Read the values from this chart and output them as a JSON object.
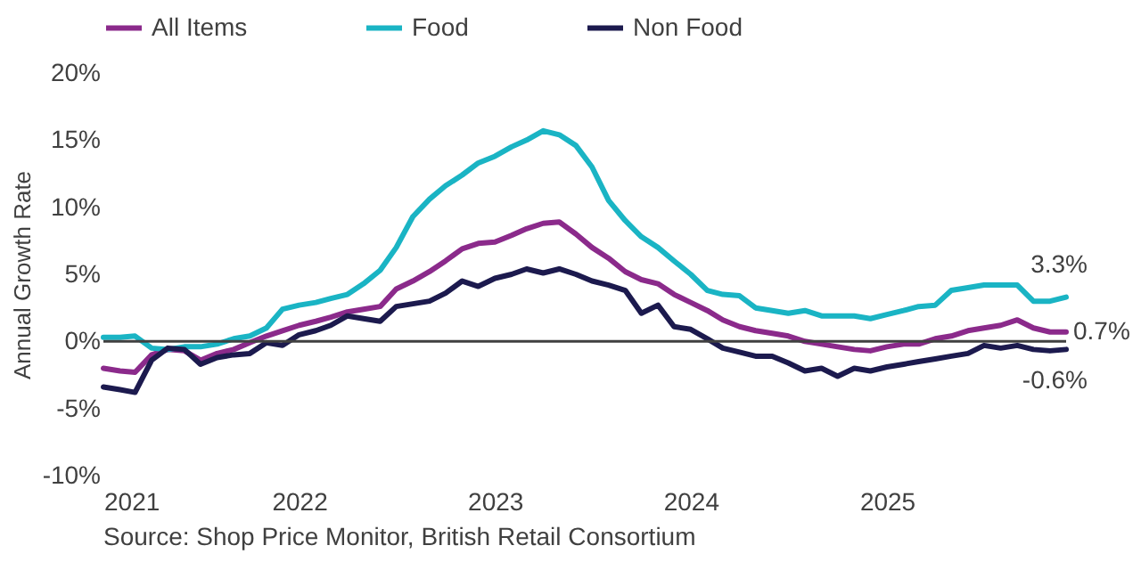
{
  "chart_data": {
    "type": "line",
    "ylabel": "Annual Growth Rate",
    "x": [
      "2021-01",
      "2021-02",
      "2021-03",
      "2021-04",
      "2021-05",
      "2021-06",
      "2021-07",
      "2021-08",
      "2021-09",
      "2021-10",
      "2021-11",
      "2021-12",
      "2022-01",
      "2022-02",
      "2022-03",
      "2022-04",
      "2022-05",
      "2022-06",
      "2022-07",
      "2022-08",
      "2022-09",
      "2022-10",
      "2022-11",
      "2022-12",
      "2023-01",
      "2023-02",
      "2023-03",
      "2023-04",
      "2023-05",
      "2023-06",
      "2023-07",
      "2023-08",
      "2023-09",
      "2023-10",
      "2023-11",
      "2023-12",
      "2024-01",
      "2024-02",
      "2024-03",
      "2024-04",
      "2024-05",
      "2024-06",
      "2024-07",
      "2024-08",
      "2024-09",
      "2024-10",
      "2024-11",
      "2024-12",
      "2025-01",
      "2025-02",
      "2025-03",
      "2025-04",
      "2025-05",
      "2025-06",
      "2025-07",
      "2025-08",
      "2025-09",
      "2025-10",
      "2025-11",
      "2025-12"
    ],
    "series": [
      {
        "name": "All Items",
        "color": "#8b2a8b",
        "values": [
          -2.0,
          -2.2,
          -2.3,
          -1.0,
          -0.6,
          -0.7,
          -1.4,
          -0.9,
          -0.6,
          -0.1,
          0.4,
          0.8,
          1.2,
          1.5,
          1.8,
          2.2,
          2.4,
          2.6,
          3.9,
          4.5,
          5.2,
          6.0,
          6.9,
          7.3,
          7.4,
          7.9,
          8.4,
          8.8,
          8.9,
          8.0,
          7.0,
          6.2,
          5.2,
          4.6,
          4.3,
          3.5,
          2.9,
          2.3,
          1.6,
          1.1,
          0.8,
          0.6,
          0.4,
          0.0,
          -0.2,
          -0.4,
          -0.6,
          -0.7,
          -0.4,
          -0.2,
          -0.2,
          0.2,
          0.4,
          0.8,
          1.0,
          1.2,
          1.6,
          1.0,
          0.7,
          0.7
        ],
        "value_labels": [
          null,
          null,
          null,
          null,
          null,
          null,
          null,
          null,
          null,
          null,
          null,
          null,
          null,
          null,
          null,
          null,
          null,
          null,
          null,
          null,
          null,
          null,
          null,
          null,
          null,
          null,
          null,
          null,
          null,
          null,
          null,
          null,
          null,
          null,
          null,
          null,
          null,
          null,
          null,
          null,
          null,
          null,
          null,
          null,
          null,
          null,
          null,
          null,
          null,
          null,
          null,
          null,
          null,
          null,
          null,
          null,
          null,
          null,
          null,
          "0.7%"
        ]
      },
      {
        "name": "Food",
        "color": "#1ab4c4",
        "values": [
          0.3,
          0.3,
          0.4,
          -0.5,
          -0.6,
          -0.4,
          -0.4,
          -0.2,
          0.2,
          0.4,
          1.0,
          2.4,
          2.7,
          2.9,
          3.2,
          3.5,
          4.3,
          5.3,
          7.0,
          9.3,
          10.6,
          11.6,
          12.4,
          13.3,
          13.8,
          14.5,
          15.0,
          15.7,
          15.4,
          14.6,
          13.0,
          10.5,
          9.0,
          7.8,
          7.0,
          6.0,
          5.0,
          3.8,
          3.5,
          3.4,
          2.5,
          2.3,
          2.1,
          2.3,
          1.9,
          1.9,
          1.9,
          1.7,
          2.0,
          2.3,
          2.6,
          2.7,
          3.8,
          4.0,
          4.2,
          4.2,
          4.2,
          3.0,
          3.0,
          3.3
        ],
        "value_labels": [
          null,
          null,
          null,
          null,
          null,
          null,
          null,
          null,
          null,
          null,
          null,
          null,
          null,
          null,
          null,
          null,
          null,
          null,
          null,
          null,
          null,
          null,
          null,
          null,
          null,
          null,
          null,
          null,
          null,
          null,
          null,
          null,
          null,
          null,
          null,
          null,
          null,
          null,
          null,
          null,
          null,
          null,
          null,
          null,
          null,
          null,
          null,
          null,
          null,
          null,
          null,
          null,
          null,
          null,
          null,
          null,
          null,
          null,
          null,
          "3.3%"
        ]
      },
      {
        "name": "Non Food",
        "color": "#1c1a4e",
        "values": [
          -3.4,
          -3.6,
          -3.8,
          -1.4,
          -0.5,
          -0.6,
          -1.7,
          -1.2,
          -1.0,
          -0.9,
          -0.1,
          -0.3,
          0.5,
          0.8,
          1.2,
          1.9,
          1.7,
          1.5,
          2.6,
          2.8,
          3.0,
          3.6,
          4.5,
          4.1,
          4.7,
          5.0,
          5.4,
          5.1,
          5.4,
          5.0,
          4.5,
          4.2,
          3.8,
          2.1,
          2.7,
          1.1,
          0.9,
          0.2,
          -0.5,
          -0.8,
          -1.1,
          -1.1,
          -1.6,
          -2.2,
          -2.0,
          -2.6,
          -2.0,
          -2.2,
          -1.9,
          -1.7,
          -1.5,
          -1.3,
          -1.1,
          -0.9,
          -0.3,
          -0.5,
          -0.3,
          -0.6,
          -0.7,
          -0.6
        ],
        "value_labels": [
          null,
          null,
          null,
          null,
          null,
          null,
          null,
          null,
          null,
          null,
          null,
          null,
          null,
          null,
          null,
          null,
          null,
          null,
          null,
          null,
          null,
          null,
          null,
          null,
          null,
          null,
          null,
          null,
          null,
          null,
          null,
          null,
          null,
          null,
          null,
          null,
          null,
          null,
          null,
          null,
          null,
          null,
          null,
          null,
          null,
          null,
          null,
          null,
          null,
          null,
          null,
          null,
          null,
          null,
          null,
          null,
          null,
          null,
          null,
          "-0.6%"
        ]
      }
    ],
    "xlim": [
      "2021-01",
      "2025-12"
    ],
    "xticks": [
      "2021",
      "2022",
      "2023",
      "2024",
      "2025"
    ],
    "ylim": [
      -10,
      20
    ],
    "yticks": [
      {
        "value": -10,
        "label": "-10%"
      },
      {
        "value": -5,
        "label": "-5%"
      },
      {
        "value": 0,
        "label": "0%"
      },
      {
        "value": 5,
        "label": "5%"
      },
      {
        "value": 10,
        "label": "10%"
      },
      {
        "value": 15,
        "label": "15%"
      },
      {
        "value": 20,
        "label": "20%"
      }
    ],
    "ref_lines": [
      {
        "axis": "y",
        "value": 0,
        "color": "#404040"
      }
    ],
    "legend": "top",
    "grid": false,
    "marker": "none",
    "line_style": "solid",
    "annotations": [
      "Source: Shop Price Monitor, British Retail Consortium"
    ]
  }
}
